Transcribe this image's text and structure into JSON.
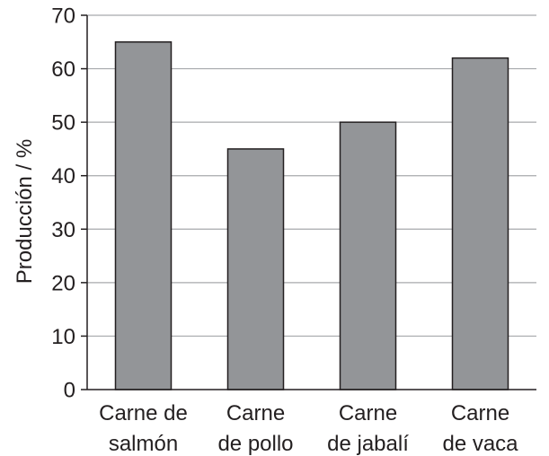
{
  "chart_data": {
    "type": "bar",
    "title": "",
    "xlabel": "",
    "ylabel": "Producción / %",
    "ylim": [
      0,
      70
    ],
    "yticks": [
      0,
      10,
      20,
      30,
      40,
      50,
      60,
      70
    ],
    "grid": true,
    "categories": [
      [
        "Carne de",
        "salmón"
      ],
      [
        "Carne",
        "de pollo"
      ],
      [
        "Carne",
        "de jabalí"
      ],
      [
        "Carne",
        "de vaca"
      ]
    ],
    "values": [
      65,
      45,
      50,
      62
    ],
    "colors": {
      "bar_fill": "#939598",
      "bar_stroke": "#231f20",
      "axis": "#231f20",
      "grid": "#a7a9ac",
      "text": "#231f20"
    }
  }
}
